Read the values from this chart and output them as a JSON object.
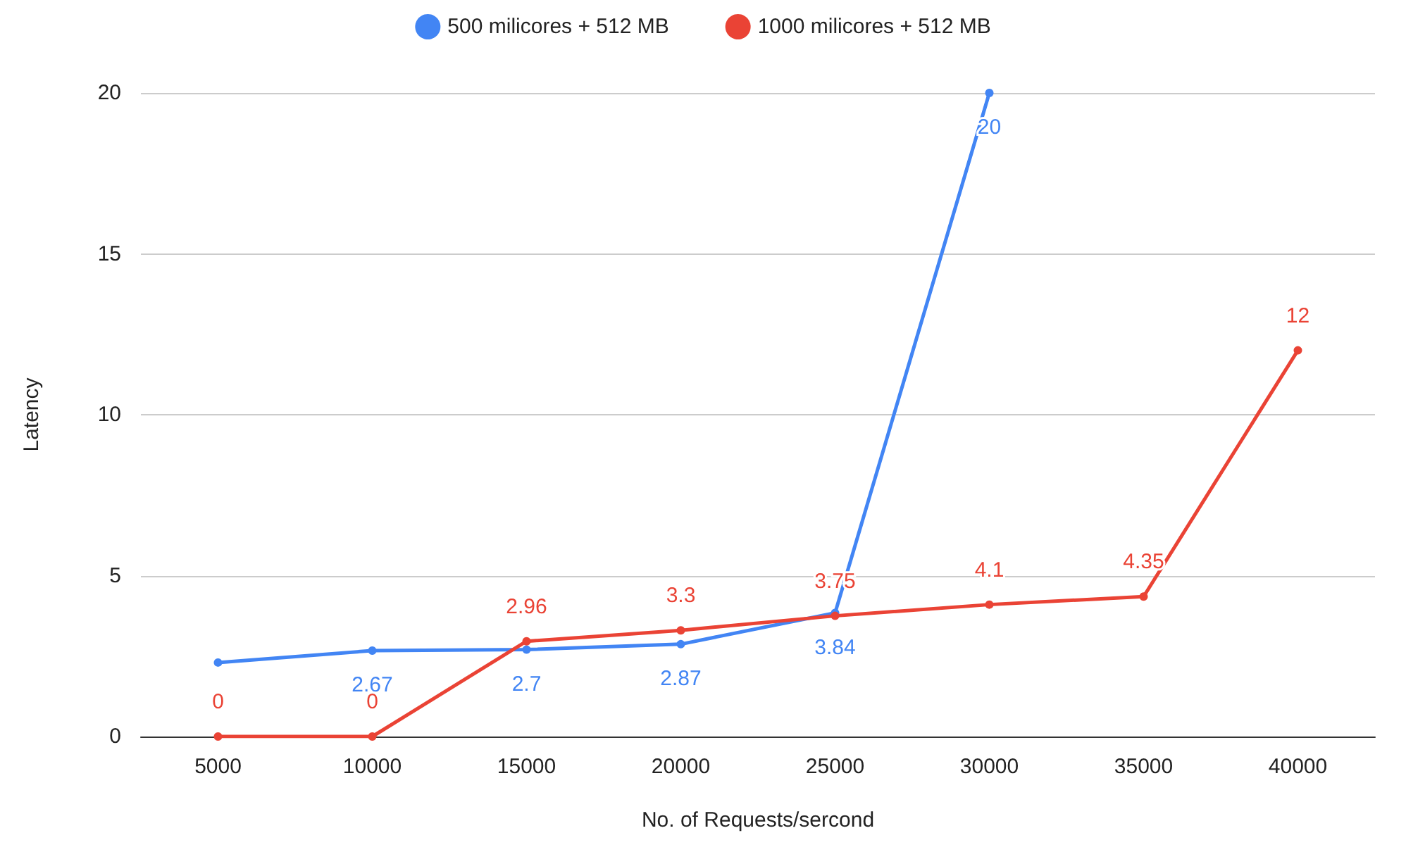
{
  "chart_data": {
    "type": "line",
    "xlabel": "No. of Requests/sercond",
    "ylabel": "Latency",
    "categories": [
      "5000",
      "10000",
      "15000",
      "20000",
      "25000",
      "30000",
      "35000",
      "40000"
    ],
    "series": [
      {
        "name": "500 milicores + 512 MB",
        "color": "#4285f4",
        "values": [
          2.3,
          2.67,
          2.7,
          2.87,
          3.84,
          20,
          null,
          null
        ],
        "value_labels": [
          null,
          "2.67",
          "2.7",
          "2.87",
          "3.84",
          "20",
          null,
          null
        ]
      },
      {
        "name": "1000 milicores + 512 MB",
        "color": "#ea4335",
        "values": [
          0,
          0,
          2.96,
          3.3,
          3.75,
          4.1,
          4.35,
          12
        ],
        "value_labels": [
          "0",
          "0",
          "2.96",
          "3.3",
          "3.75",
          "4.1",
          "4.35",
          "12"
        ]
      }
    ],
    "ylim": [
      0,
      20
    ],
    "yticks": [
      0,
      5,
      10,
      15,
      20
    ],
    "grid": "y",
    "legend": "top",
    "marker": "circle",
    "line_style": "solid"
  }
}
